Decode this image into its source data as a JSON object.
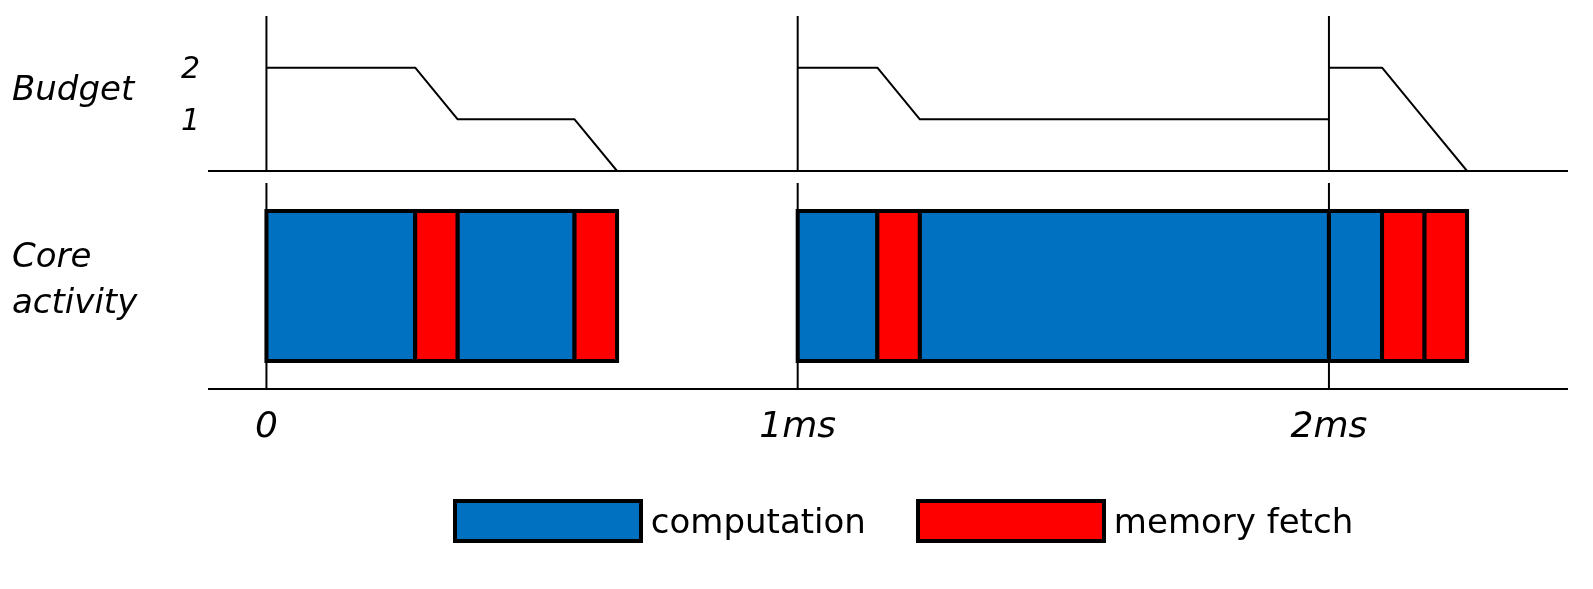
{
  "chart_data": [
    {
      "type": "line",
      "ylabel": "Budget",
      "xlim": [
        -0.11,
        2.45
      ],
      "ylim": [
        0,
        3
      ],
      "yticks": [
        1,
        2
      ],
      "tick_labels": "y",
      "series": [
        {
          "color": "#000000",
          "x": [
            0,
            0.28,
            0.36,
            0.58,
            0.66
          ],
          "values": [
            2,
            2,
            1,
            1,
            0
          ]
        },
        {
          "color": "#000000",
          "x": [
            1,
            1.15,
            1.23,
            2
          ],
          "values": [
            2,
            2,
            1,
            1
          ]
        },
        {
          "color": "#000000",
          "x": [
            2,
            2.1,
            2.18,
            2.26
          ],
          "values": [
            2,
            2,
            1,
            0
          ]
        }
      ],
      "ref_lines": [
        {
          "axis": "x",
          "value": 0,
          "color": "#000000"
        },
        {
          "axis": "x",
          "value": 1,
          "color": "#000000"
        },
        {
          "axis": "x",
          "value": 2,
          "color": "#000000"
        }
      ]
    },
    {
      "type": "bar",
      "orientation": "horizontal",
      "ylabel": "Core activity",
      "categories": [
        null
      ],
      "xlim": [
        -0.11,
        2.45
      ],
      "xticks": [
        0,
        {
          "value": 1,
          "label": "1ms"
        },
        {
          "value": 2,
          "label": "2ms"
        }
      ],
      "tick_labels": "x",
      "legend": "bottom",
      "series": [
        {
          "name": "computation",
          "color": "#0070c0",
          "base": [
            0
          ],
          "values": [
            0.28
          ]
        },
        {
          "name": "memory fetch",
          "color": "#ff0000",
          "base": [
            0.28
          ],
          "values": [
            0.08
          ]
        },
        {
          "color": "#0070c0",
          "base": [
            0.36
          ],
          "values": [
            0.22
          ]
        },
        {
          "color": "#ff0000",
          "base": [
            0.58
          ],
          "values": [
            0.08
          ]
        },
        {
          "color": "#0070c0",
          "base": [
            1
          ],
          "values": [
            0.15
          ]
        },
        {
          "color": "#ff0000",
          "base": [
            1.15
          ],
          "values": [
            0.08
          ]
        },
        {
          "color": "#0070c0",
          "base": [
            1.23
          ],
          "values": [
            0.77
          ]
        },
        {
          "color": "#0070c0",
          "base": [
            2
          ],
          "values": [
            0.1
          ]
        },
        {
          "color": "#ff0000",
          "base": [
            2.1
          ],
          "values": [
            0.08
          ]
        },
        {
          "color": "#ff0000",
          "base": [
            2.18
          ],
          "values": [
            0.08
          ]
        }
      ],
      "ref_lines": [
        {
          "axis": "x",
          "value": 0,
          "color": "#000000"
        },
        {
          "axis": "x",
          "value": 1,
          "color": "#000000"
        },
        {
          "axis": "x",
          "value": 2,
          "color": "#000000"
        }
      ]
    }
  ]
}
